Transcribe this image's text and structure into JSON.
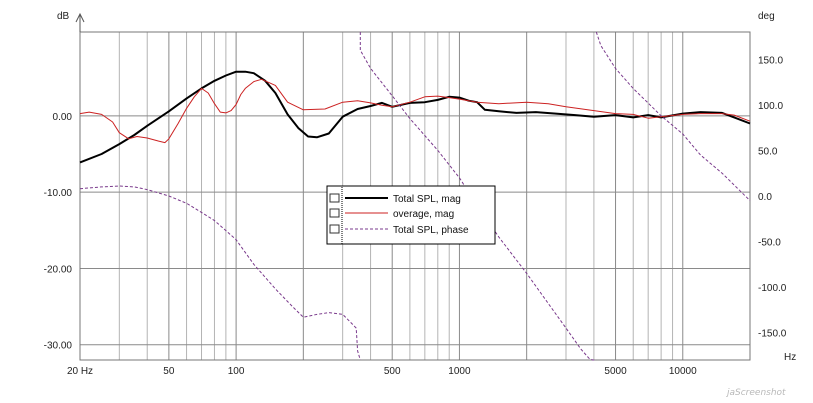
{
  "chart_data": {
    "type": "line",
    "title": "",
    "x_scale": "log",
    "grid": true,
    "xlim": [
      20,
      20000
    ],
    "left_axis": {
      "label": "dB",
      "ylim": [
        -32,
        11
      ],
      "ticks": [
        0,
        -10,
        -20,
        -30
      ],
      "tick_labels": [
        "0.00",
        "-10.00",
        "-20.00",
        "-30.00"
      ]
    },
    "right_axis": {
      "label": "deg",
      "ylim": [
        -180,
        180
      ],
      "ticks": [
        150,
        100,
        50,
        0,
        -50,
        -100,
        -150
      ],
      "tick_labels": [
        "150.0",
        "100.0",
        "50.0",
        "0.0",
        "-50.0",
        "-100.0",
        "-150.0"
      ]
    },
    "x_axis": {
      "unit": "Hz",
      "ticks": [
        20,
        50,
        100,
        500,
        1000,
        5000,
        10000
      ],
      "tick_labels": [
        "20 Hz",
        "50",
        "100",
        "500",
        "1000",
        "5000",
        "10000"
      ]
    },
    "legend": {
      "position": "center"
    },
    "series": [
      {
        "name": "Total SPL, mag",
        "axis": "left",
        "color": "#000000",
        "style": "solid",
        "x": [
          20,
          25,
          30,
          35,
          40,
          50,
          60,
          70,
          80,
          90,
          100,
          110,
          120,
          135,
          150,
          170,
          190,
          210,
          230,
          260,
          300,
          350,
          400,
          450,
          500,
          600,
          700,
          800,
          900,
          1000,
          1100,
          1200,
          1300,
          1500,
          1800,
          2200,
          2700,
          3300,
          4000,
          5000,
          6000,
          7000,
          8000,
          10000,
          12000,
          15000,
          17000,
          20000
        ],
        "values": [
          -6.1,
          -5.0,
          -3.7,
          -2.5,
          -1.3,
          0.6,
          2.3,
          3.6,
          4.6,
          5.3,
          5.8,
          5.8,
          5.6,
          4.6,
          3.0,
          0.2,
          -1.6,
          -2.7,
          -2.8,
          -2.3,
          -0.1,
          0.9,
          1.3,
          1.7,
          1.2,
          1.7,
          1.8,
          2.1,
          2.5,
          2.4,
          2.0,
          1.8,
          0.8,
          0.6,
          0.4,
          0.5,
          0.3,
          0.1,
          -0.1,
          0.1,
          -0.2,
          0.1,
          -0.2,
          0.3,
          0.5,
          0.4,
          -0.2,
          -1.0
        ]
      },
      {
        "name": "overage, mag",
        "axis": "left",
        "color": "#cc2222",
        "style": "solid",
        "x": [
          20,
          22,
          25,
          28,
          30,
          33,
          36,
          40,
          45,
          48,
          50,
          55,
          60,
          65,
          70,
          75,
          80,
          85,
          90,
          95,
          100,
          105,
          110,
          120,
          130,
          150,
          170,
          200,
          250,
          300,
          350,
          400,
          450,
          500,
          600,
          700,
          800,
          900,
          1000,
          1200,
          1500,
          2000,
          2500,
          3000,
          4000,
          5000,
          6000,
          7000,
          8000,
          10000,
          12000,
          15000,
          17000,
          20000
        ],
        "values": [
          0.3,
          0.5,
          0.2,
          -0.8,
          -2.2,
          -3.0,
          -2.7,
          -2.9,
          -3.3,
          -3.5,
          -3.0,
          -1.0,
          1.0,
          2.5,
          3.6,
          3.0,
          1.6,
          0.5,
          0.4,
          0.7,
          1.5,
          2.8,
          3.6,
          4.5,
          4.8,
          4.0,
          1.8,
          0.8,
          0.9,
          1.8,
          2.0,
          1.7,
          1.4,
          1.2,
          1.8,
          2.5,
          2.6,
          2.4,
          2.2,
          1.8,
          1.6,
          1.8,
          1.6,
          1.2,
          0.7,
          0.3,
          0.2,
          -0.3,
          -0.1,
          0.2,
          0.3,
          0.3,
          0.1,
          -0.7
        ]
      },
      {
        "name": "Total SPL, phase",
        "axis": "right",
        "color": "#7a3a8c",
        "style": "dashed",
        "x": [
          20,
          25,
          30,
          35,
          40,
          50,
          60,
          70,
          80,
          90,
          100,
          120,
          150,
          180,
          200,
          230,
          260,
          300,
          330,
          345,
          350,
          360,
          400,
          500,
          600,
          800,
          1000,
          1200,
          1500,
          2000,
          2500,
          3000,
          3500,
          3800,
          3950,
          4000,
          4100,
          4300,
          5000,
          6000,
          7000,
          8000,
          10000,
          12000,
          15000,
          17000,
          20000
        ],
        "values": [
          8,
          10,
          11,
          10,
          7,
          0,
          -8,
          -18,
          -27,
          -38,
          -48,
          -75,
          -102,
          -122,
          -133,
          -130,
          -128,
          -130,
          -140,
          -145,
          -170,
          160,
          140,
          110,
          85,
          50,
          20,
          -10,
          -45,
          -85,
          -118,
          -145,
          -168,
          -178,
          -180,
          -180,
          180,
          165,
          140,
          118,
          102,
          88,
          68,
          45,
          25,
          12,
          -5
        ]
      }
    ]
  },
  "watermark": "jaScreenshot"
}
